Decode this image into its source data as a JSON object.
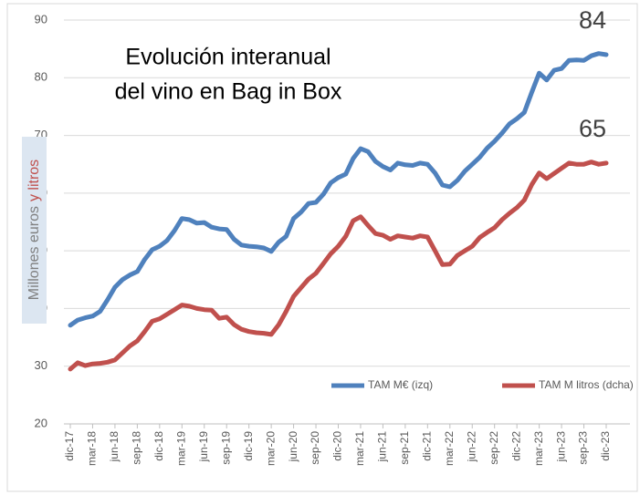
{
  "chart_data": {
    "type": "line",
    "title_lines": [
      "Evolución interanual",
      "del vino en Bag in Box"
    ],
    "ylabel_parts": [
      {
        "text": "Millones euros",
        "color": "#7f7f7f"
      },
      {
        "text": "y litros",
        "color": "#c0504d"
      }
    ],
    "categories": [
      "dic-17",
      null,
      null,
      "mar-18",
      null,
      null,
      "jun-18",
      null,
      null,
      "sep-18",
      null,
      null,
      "dic-18",
      null,
      null,
      "mar-19",
      null,
      null,
      "jun-19",
      null,
      null,
      "sep-19",
      null,
      null,
      "dic-19",
      null,
      null,
      "mar-20",
      null,
      null,
      "jun-20",
      null,
      null,
      "sep-20",
      null,
      null,
      "dic-20",
      null,
      null,
      "mar-21",
      null,
      null,
      "jun-21",
      null,
      null,
      "sep-21",
      null,
      null,
      "dic-21",
      null,
      null,
      "mar-22",
      null,
      null,
      "jun-22",
      null,
      null,
      "sep-22",
      null,
      null,
      "dic-22",
      null,
      null,
      "mar-23",
      null,
      null,
      "jun-23",
      null,
      null,
      "sep-23",
      null,
      null,
      "dic-23"
    ],
    "series": [
      {
        "name": "TAM M€ (izq)",
        "color": "#4f81bd",
        "values": [
          37.1,
          38.0,
          38.4,
          38.7,
          39.5,
          41.5,
          43.7,
          45.0,
          45.8,
          46.4,
          48.5,
          50.2,
          50.8,
          51.8,
          53.5,
          55.6,
          55.4,
          54.8,
          54.9,
          54.1,
          53.8,
          53.7,
          52.0,
          51.0,
          50.8,
          50.7,
          50.5,
          49.9,
          51.5,
          52.5,
          55.6,
          56.7,
          58.2,
          58.4,
          59.8,
          61.8,
          62.7,
          63.3,
          66.0,
          67.7,
          67.2,
          65.5,
          64.6,
          64.0,
          65.2,
          64.9,
          64.8,
          65.2,
          65.0,
          63.5,
          61.4,
          61.1,
          62.2,
          63.8,
          65.0,
          66.2,
          67.8,
          69.0,
          70.4,
          72.0,
          72.9,
          74.0,
          77.5,
          80.8,
          79.6,
          81.3,
          81.6,
          83.0,
          83.1,
          83.0,
          83.8,
          84.2,
          84.0
        ],
        "end_label": "84"
      },
      {
        "name": "TAM M litros (dcha)",
        "color": "#c0504d",
        "values": [
          29.5,
          30.6,
          30.1,
          30.4,
          30.5,
          30.7,
          31.1,
          32.3,
          33.5,
          34.4,
          36.0,
          37.8,
          38.2,
          39.0,
          39.8,
          40.6,
          40.4,
          40.0,
          39.8,
          39.7,
          38.3,
          38.5,
          37.2,
          36.4,
          36.0,
          35.8,
          35.7,
          35.5,
          37.2,
          39.5,
          42.1,
          43.6,
          45.1,
          46.1,
          47.8,
          49.5,
          50.8,
          52.5,
          55.2,
          55.9,
          54.4,
          53.0,
          52.7,
          52.0,
          52.6,
          52.4,
          52.2,
          52.6,
          52.4,
          50.0,
          47.6,
          47.7,
          49.2,
          50.0,
          50.8,
          52.3,
          53.2,
          54.0,
          55.4,
          56.5,
          57.5,
          58.8,
          61.5,
          63.5,
          62.5,
          63.4,
          64.3,
          65.2,
          65.0,
          65.0,
          65.4,
          65.0,
          65.2
        ],
        "end_label": "65"
      }
    ],
    "ylim": [
      20,
      90
    ],
    "yticks": [
      20,
      30,
      40,
      50,
      60,
      70,
      80,
      90
    ],
    "grid": true
  }
}
